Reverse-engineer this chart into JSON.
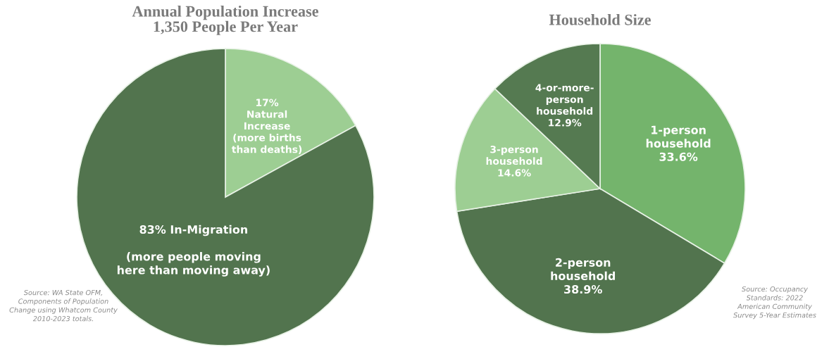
{
  "chart_data": [
    {
      "type": "pie",
      "title": "Annual Population Increase\n1,350 People Per Year",
      "categories": [
        "17%\nNatural\nIncrease\n(more births\nthan deaths)",
        "83% In-Migration\n\n(more people moving\nhere than moving away)"
      ],
      "values": [
        17,
        83
      ],
      "colors": [
        "#9dce93",
        "#52744e"
      ],
      "annotations": [
        "Source: WA State OFM,\nComponents of Population\nChange using Whatcom County\n2010-2023 totals."
      ]
    },
    {
      "type": "pie",
      "title": "Household Size",
      "categories": [
        "1-person\nhousehold\n33.6%",
        "2-person\nhousehold\n38.9%",
        "3-person\nhousehold\n14.6%",
        "4-or-more-\nperson\nhousehold\n12.9%"
      ],
      "values": [
        33.6,
        38.9,
        14.6,
        12.9
      ],
      "colors": [
        "#74b46c",
        "#52744e",
        "#9dce93",
        "#557a51"
      ],
      "annotations": [
        "Source: Occupancy\nStandards: 2022\nAmerican Community\nSurvey 5-Year Estimates"
      ]
    }
  ]
}
